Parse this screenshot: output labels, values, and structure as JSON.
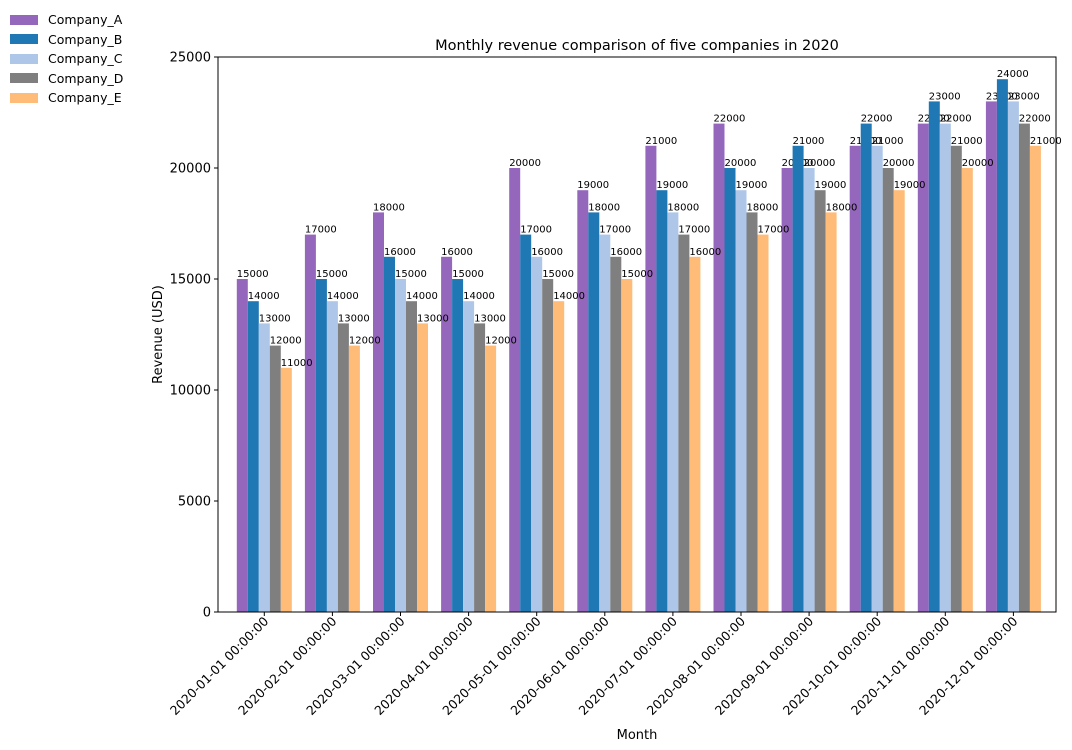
{
  "chart_data": {
    "type": "bar",
    "title": "Monthly revenue comparison of five companies in 2020",
    "xlabel": "Month",
    "ylabel": "Revenue (USD)",
    "ylim": [
      0,
      25000
    ],
    "yticks": [
      0,
      5000,
      10000,
      15000,
      20000,
      25000
    ],
    "grid": false,
    "legend_position": "outside top-left",
    "categories": [
      "2020-01-01 00:00:00",
      "2020-02-01 00:00:00",
      "2020-03-01 00:00:00",
      "2020-04-01 00:00:00",
      "2020-05-01 00:00:00",
      "2020-06-01 00:00:00",
      "2020-07-01 00:00:00",
      "2020-08-01 00:00:00",
      "2020-09-01 00:00:00",
      "2020-10-01 00:00:00",
      "2020-11-01 00:00:00",
      "2020-12-01 00:00:00"
    ],
    "series": [
      {
        "name": "Company_A",
        "color": "#9467bd",
        "values": [
          15000,
          17000,
          18000,
          16000,
          20000,
          19000,
          21000,
          22000,
          20000,
          21000,
          22000,
          23000
        ]
      },
      {
        "name": "Company_B",
        "color": "#1f77b4",
        "values": [
          14000,
          15000,
          16000,
          15000,
          17000,
          18000,
          19000,
          20000,
          21000,
          22000,
          23000,
          24000
        ]
      },
      {
        "name": "Company_C",
        "color": "#aec7e8",
        "values": [
          13000,
          14000,
          15000,
          14000,
          16000,
          17000,
          18000,
          19000,
          20000,
          21000,
          22000,
          23000
        ]
      },
      {
        "name": "Company_D",
        "color": "#7f7f7f",
        "values": [
          12000,
          13000,
          14000,
          13000,
          15000,
          16000,
          17000,
          18000,
          19000,
          20000,
          21000,
          22000
        ]
      },
      {
        "name": "Company_E",
        "color": "#ffbb78",
        "values": [
          11000,
          12000,
          13000,
          12000,
          14000,
          15000,
          16000,
          17000,
          18000,
          19000,
          20000,
          21000
        ]
      }
    ]
  }
}
